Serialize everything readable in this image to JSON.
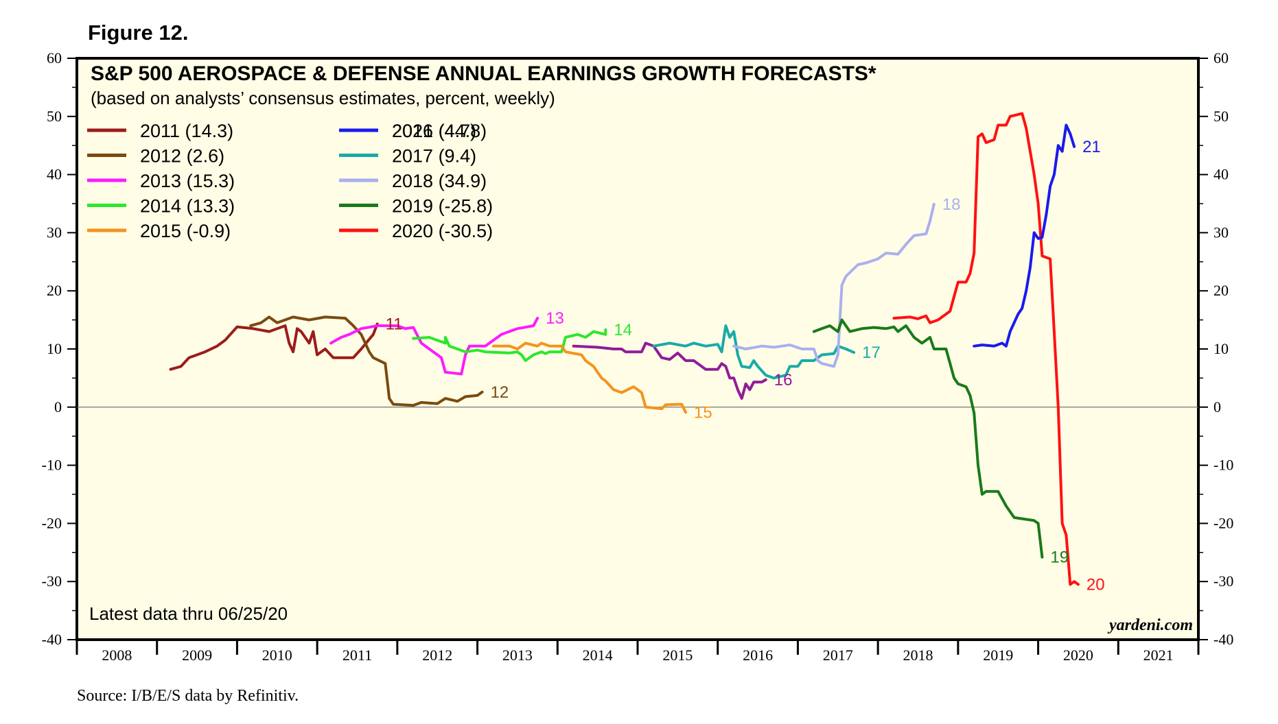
{
  "figure_label": "Figure 12.",
  "source": "Source: I/B/E/S data by Refinitiv.",
  "colors": {
    "background": "#fffde6",
    "frame": "#000000",
    "zero_line": "#666666"
  },
  "chart_data": {
    "type": "line",
    "title": "S&P 500 AEROSPACE & DEFENSE ANNUAL EARNINGS GROWTH FORECASTS*",
    "subtitle": "(based on analysts’ consensus estimates, percent, weekly)",
    "note": "Latest data thru 06/25/20",
    "brand": "yardeni.com",
    "ylim": [
      -40,
      60
    ],
    "yticks": [
      "-40",
      "-30",
      "-20",
      "-10",
      "0",
      "10",
      "20",
      "30",
      "40",
      "50",
      "60"
    ],
    "xlim": [
      2008,
      2022
    ],
    "xticks": [
      "2008",
      "2009",
      "2010",
      "2011",
      "2012",
      "2013",
      "2014",
      "2015",
      "2016",
      "2017",
      "2018",
      "2019",
      "2020",
      "2021"
    ],
    "series": [
      {
        "name": "2011",
        "legend": "2011 (14.3)",
        "end_label": "11",
        "color": "#9b1c1c",
        "points": [
          [
            2009.17,
            6.5
          ],
          [
            2009.3,
            7
          ],
          [
            2009.4,
            8.5
          ],
          [
            2009.6,
            9.5
          ],
          [
            2009.75,
            10.5
          ],
          [
            2009.85,
            11.5
          ],
          [
            2010.0,
            13.8
          ],
          [
            2010.2,
            13.5
          ],
          [
            2010.4,
            13
          ],
          [
            2010.6,
            14
          ],
          [
            2010.65,
            11
          ],
          [
            2010.7,
            9.5
          ],
          [
            2010.75,
            13.5
          ],
          [
            2010.8,
            13
          ],
          [
            2010.9,
            11
          ],
          [
            2010.95,
            13
          ],
          [
            2011.0,
            9
          ],
          [
            2011.1,
            10
          ],
          [
            2011.2,
            8.5
          ],
          [
            2011.45,
            8.5
          ],
          [
            2011.55,
            10
          ],
          [
            2011.7,
            12.5
          ],
          [
            2011.75,
            14.3
          ]
        ]
      },
      {
        "name": "2012",
        "legend": "2012 (2.6)",
        "end_label": "12",
        "color": "#7a4a10",
        "points": [
          [
            2010.17,
            14
          ],
          [
            2010.3,
            14.5
          ],
          [
            2010.4,
            15.5
          ],
          [
            2010.5,
            14.5
          ],
          [
            2010.7,
            15.5
          ],
          [
            2010.9,
            15
          ],
          [
            2011.1,
            15.5
          ],
          [
            2011.35,
            15.3
          ],
          [
            2011.45,
            14
          ],
          [
            2011.55,
            12.5
          ],
          [
            2011.6,
            11
          ],
          [
            2011.65,
            9.5
          ],
          [
            2011.7,
            8.5
          ],
          [
            2011.85,
            7.5
          ],
          [
            2011.9,
            1.5
          ],
          [
            2011.95,
            0.5
          ],
          [
            2012.2,
            0.3
          ],
          [
            2012.3,
            0.8
          ],
          [
            2012.5,
            0.6
          ],
          [
            2012.6,
            1.5
          ],
          [
            2012.75,
            1
          ],
          [
            2012.85,
            1.8
          ],
          [
            2013.0,
            2
          ],
          [
            2013.06,
            2.6
          ]
        ]
      },
      {
        "name": "2013",
        "legend": "2013 (15.3)",
        "end_label": "13",
        "color": "#ff1aff",
        "points": [
          [
            2011.17,
            11
          ],
          [
            2011.3,
            12
          ],
          [
            2011.4,
            12.5
          ],
          [
            2011.55,
            13.5
          ],
          [
            2011.75,
            14
          ],
          [
            2012.0,
            14
          ],
          [
            2012.1,
            13.5
          ],
          [
            2012.2,
            13.7
          ],
          [
            2012.3,
            11
          ],
          [
            2012.4,
            10
          ],
          [
            2012.55,
            8.5
          ],
          [
            2012.6,
            6
          ],
          [
            2012.8,
            5.7
          ],
          [
            2012.85,
            9
          ],
          [
            2012.9,
            10.5
          ],
          [
            2013.1,
            10.5
          ],
          [
            2013.2,
            11.5
          ],
          [
            2013.3,
            12.5
          ],
          [
            2013.5,
            13.5
          ],
          [
            2013.7,
            14
          ],
          [
            2013.75,
            15.3
          ]
        ]
      },
      {
        "name": "2014",
        "legend": "2014 (13.3)",
        "end_label": "14",
        "color": "#2ee62e",
        "points": [
          [
            2012.2,
            11.8
          ],
          [
            2012.4,
            12
          ],
          [
            2012.5,
            11.5
          ],
          [
            2012.6,
            11
          ],
          [
            2012.6,
            12
          ],
          [
            2012.65,
            10.5
          ],
          [
            2012.75,
            10
          ],
          [
            2012.85,
            9.5
          ],
          [
            2013.0,
            9.8
          ],
          [
            2013.1,
            9.5
          ],
          [
            2013.4,
            9.3
          ],
          [
            2013.5,
            9.5
          ],
          [
            2013.55,
            9
          ],
          [
            2013.6,
            8
          ],
          [
            2013.7,
            9
          ],
          [
            2013.8,
            9.5
          ],
          [
            2013.85,
            9.2
          ],
          [
            2013.9,
            9.5
          ],
          [
            2014.05,
            9.5
          ],
          [
            2014.1,
            12
          ],
          [
            2014.25,
            12.5
          ],
          [
            2014.35,
            12
          ],
          [
            2014.45,
            13
          ],
          [
            2014.6,
            12.5
          ],
          [
            2014.6,
            13.3
          ]
        ]
      },
      {
        "name": "2015",
        "legend": "2015 (-0.9)",
        "end_label": "15",
        "color": "#f5931e",
        "points": [
          [
            2013.2,
            10.5
          ],
          [
            2013.4,
            10.5
          ],
          [
            2013.5,
            10
          ],
          [
            2013.6,
            11
          ],
          [
            2013.75,
            10.5
          ],
          [
            2013.8,
            11
          ],
          [
            2013.9,
            10.5
          ],
          [
            2014.05,
            10.5
          ],
          [
            2014.1,
            9.5
          ],
          [
            2014.3,
            9
          ],
          [
            2014.35,
            8
          ],
          [
            2014.45,
            7
          ],
          [
            2014.55,
            5
          ],
          [
            2014.6,
            4.5
          ],
          [
            2014.7,
            3
          ],
          [
            2014.8,
            2.5
          ],
          [
            2014.95,
            3.5
          ],
          [
            2015.05,
            2.5
          ],
          [
            2015.1,
            0
          ],
          [
            2015.3,
            -0.3
          ],
          [
            2015.35,
            0.4
          ],
          [
            2015.55,
            0.5
          ],
          [
            2015.6,
            -0.9
          ]
        ]
      },
      {
        "name": "2016",
        "legend": "2016 (4.7)",
        "end_label": "16",
        "color": "#8f1d99",
        "points": [
          [
            2014.2,
            10.5
          ],
          [
            2014.5,
            10.3
          ],
          [
            2014.7,
            10
          ],
          [
            2014.8,
            10
          ],
          [
            2014.85,
            9.5
          ],
          [
            2015.05,
            9.5
          ],
          [
            2015.1,
            11
          ],
          [
            2015.2,
            10.5
          ],
          [
            2015.3,
            8.5
          ],
          [
            2015.4,
            8.2
          ],
          [
            2015.5,
            9.3
          ],
          [
            2015.6,
            8
          ],
          [
            2015.7,
            8
          ],
          [
            2015.75,
            7.5
          ],
          [
            2015.85,
            6.5
          ],
          [
            2016.0,
            6.5
          ],
          [
            2016.05,
            7.5
          ],
          [
            2016.1,
            7
          ],
          [
            2016.15,
            5
          ],
          [
            2016.2,
            5
          ],
          [
            2016.25,
            3
          ],
          [
            2016.3,
            1.5
          ],
          [
            2016.35,
            4
          ],
          [
            2016.4,
            3
          ],
          [
            2016.45,
            4.3
          ],
          [
            2016.55,
            4.3
          ],
          [
            2016.6,
            4.7
          ]
        ]
      },
      {
        "name": "2017",
        "legend": "2017 (9.4)",
        "end_label": "17",
        "color": "#1aaaa8",
        "points": [
          [
            2015.2,
            10.5
          ],
          [
            2015.4,
            11
          ],
          [
            2015.6,
            10.5
          ],
          [
            2015.7,
            11
          ],
          [
            2015.85,
            10.5
          ],
          [
            2016.0,
            10.8
          ],
          [
            2016.05,
            9.5
          ],
          [
            2016.1,
            14
          ],
          [
            2016.15,
            12
          ],
          [
            2016.2,
            13
          ],
          [
            2016.25,
            9
          ],
          [
            2016.3,
            7
          ],
          [
            2016.4,
            6.8
          ],
          [
            2016.45,
            8
          ],
          [
            2016.5,
            7
          ],
          [
            2016.6,
            5.5
          ],
          [
            2016.7,
            5
          ],
          [
            2016.85,
            5.5
          ],
          [
            2016.9,
            7
          ],
          [
            2017.0,
            7
          ],
          [
            2017.05,
            8
          ],
          [
            2017.2,
            8
          ],
          [
            2017.3,
            9
          ],
          [
            2017.45,
            9.2
          ],
          [
            2017.5,
            10.5
          ],
          [
            2017.6,
            10
          ],
          [
            2017.7,
            9.4
          ]
        ]
      },
      {
        "name": "2018",
        "legend": "2018 (34.9)",
        "end_label": "18",
        "color": "#aab0ee",
        "points": [
          [
            2016.2,
            10.5
          ],
          [
            2016.35,
            10
          ],
          [
            2016.55,
            10.5
          ],
          [
            2016.7,
            10.3
          ],
          [
            2016.9,
            10.7
          ],
          [
            2017.05,
            10
          ],
          [
            2017.2,
            10
          ],
          [
            2017.25,
            8
          ],
          [
            2017.3,
            7.5
          ],
          [
            2017.45,
            7
          ],
          [
            2017.5,
            9
          ],
          [
            2017.55,
            21
          ],
          [
            2017.6,
            22.5
          ],
          [
            2017.75,
            24.5
          ],
          [
            2017.85,
            24.8
          ],
          [
            2018.0,
            25.5
          ],
          [
            2018.1,
            26.5
          ],
          [
            2018.25,
            26.3
          ],
          [
            2018.35,
            28
          ],
          [
            2018.45,
            29.5
          ],
          [
            2018.6,
            29.8
          ],
          [
            2018.65,
            32
          ],
          [
            2018.7,
            34.9
          ]
        ]
      },
      {
        "name": "2019",
        "legend": "2019 (-25.8)",
        "end_label": "19",
        "color": "#1a7a1a",
        "points": [
          [
            2017.2,
            13
          ],
          [
            2017.3,
            13.5
          ],
          [
            2017.4,
            14
          ],
          [
            2017.5,
            13
          ],
          [
            2017.55,
            15
          ],
          [
            2017.65,
            13
          ],
          [
            2017.8,
            13.5
          ],
          [
            2017.95,
            13.7
          ],
          [
            2018.1,
            13.5
          ],
          [
            2018.2,
            13.8
          ],
          [
            2018.25,
            13
          ],
          [
            2018.35,
            14
          ],
          [
            2018.45,
            12
          ],
          [
            2018.55,
            11
          ],
          [
            2018.65,
            12
          ],
          [
            2018.7,
            10
          ],
          [
            2018.85,
            10
          ],
          [
            2018.9,
            7.5
          ],
          [
            2018.95,
            5
          ],
          [
            2019.0,
            4
          ],
          [
            2019.1,
            3.5
          ],
          [
            2019.15,
            2
          ],
          [
            2019.2,
            -1
          ],
          [
            2019.25,
            -10
          ],
          [
            2019.3,
            -15
          ],
          [
            2019.35,
            -14.5
          ],
          [
            2019.5,
            -14.5
          ],
          [
            2019.6,
            -17
          ],
          [
            2019.7,
            -19
          ],
          [
            2019.8,
            -19.2
          ],
          [
            2019.95,
            -19.5
          ],
          [
            2020.0,
            -20
          ],
          [
            2020.05,
            -25.8
          ]
        ]
      },
      {
        "name": "2020",
        "legend": "2020 (-30.5)",
        "end_label": "20",
        "color": "#ff1111",
        "points": [
          [
            2018.2,
            15.3
          ],
          [
            2018.4,
            15.5
          ],
          [
            2018.5,
            15.2
          ],
          [
            2018.6,
            15.7
          ],
          [
            2018.65,
            14.5
          ],
          [
            2018.75,
            15
          ],
          [
            2018.85,
            16
          ],
          [
            2018.9,
            16.5
          ],
          [
            2018.95,
            19
          ],
          [
            2019.0,
            21.5
          ],
          [
            2019.1,
            21.5
          ],
          [
            2019.15,
            23
          ],
          [
            2019.2,
            26.5
          ],
          [
            2019.25,
            46.5
          ],
          [
            2019.3,
            47
          ],
          [
            2019.35,
            45.5
          ],
          [
            2019.45,
            46
          ],
          [
            2019.5,
            48.5
          ],
          [
            2019.6,
            48.5
          ],
          [
            2019.65,
            50
          ],
          [
            2019.8,
            50.5
          ],
          [
            2019.85,
            48
          ],
          [
            2019.9,
            44
          ],
          [
            2019.95,
            40
          ],
          [
            2020.0,
            35
          ],
          [
            2020.05,
            26
          ],
          [
            2020.15,
            25.5
          ],
          [
            2020.2,
            13
          ],
          [
            2020.25,
            0
          ],
          [
            2020.3,
            -20
          ],
          [
            2020.35,
            -22
          ],
          [
            2020.4,
            -30.5
          ],
          [
            2020.45,
            -30
          ],
          [
            2020.5,
            -30.5
          ]
        ]
      },
      {
        "name": "2021",
        "legend": "2021 (44.8)",
        "end_label": "21",
        "color": "#1a1aee",
        "points": [
          [
            2019.2,
            10.5
          ],
          [
            2019.3,
            10.7
          ],
          [
            2019.45,
            10.5
          ],
          [
            2019.55,
            11
          ],
          [
            2019.6,
            10.5
          ],
          [
            2019.65,
            13
          ],
          [
            2019.75,
            16
          ],
          [
            2019.8,
            17
          ],
          [
            2019.85,
            20
          ],
          [
            2019.9,
            24
          ],
          [
            2019.95,
            30
          ],
          [
            2020.0,
            29
          ],
          [
            2020.05,
            29.2
          ],
          [
            2020.1,
            33
          ],
          [
            2020.15,
            38
          ],
          [
            2020.2,
            40
          ],
          [
            2020.25,
            45
          ],
          [
            2020.3,
            44
          ],
          [
            2020.35,
            48.5
          ],
          [
            2020.4,
            47
          ],
          [
            2020.45,
            44.8
          ]
        ]
      }
    ]
  }
}
